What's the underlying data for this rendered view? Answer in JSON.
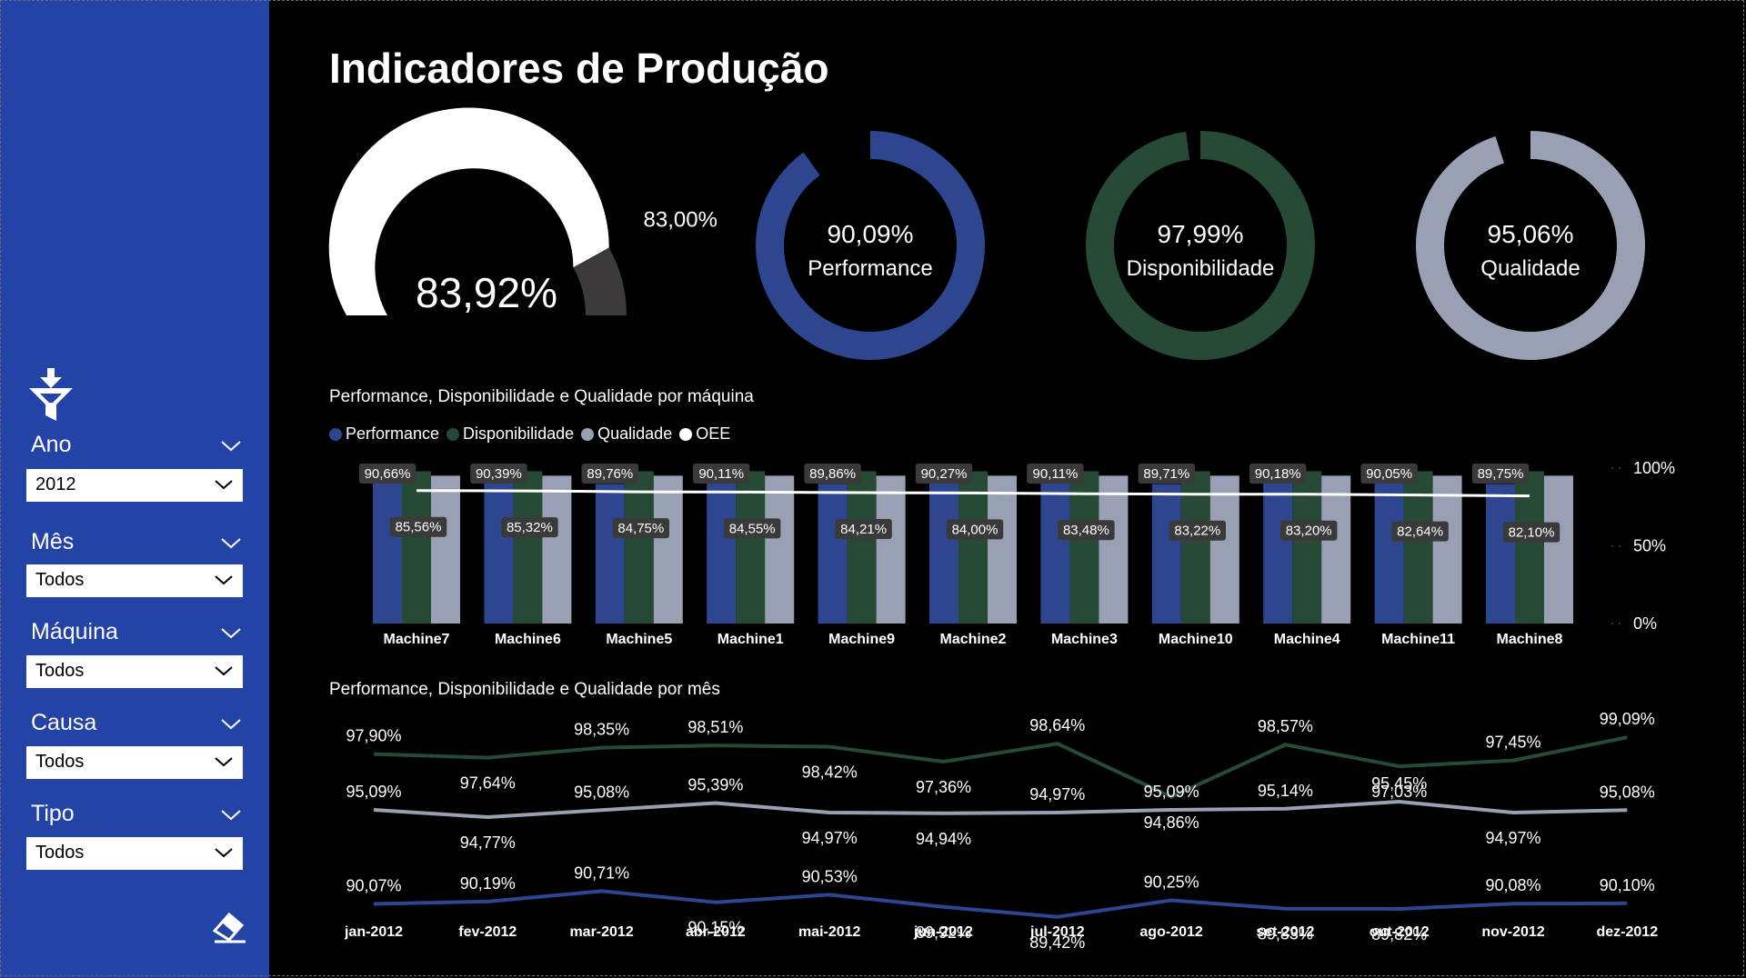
{
  "title": "Indicadores de Produção",
  "colors": {
    "sidebar": "#2443a6",
    "performance": "#2e4590",
    "disponibilidade": "#264a35",
    "qualidade": "#9aa0b4",
    "oee": "#ffffff",
    "gauge_rest": "#3c3a3a"
  },
  "sidebar": {
    "filter_icon": "funnel-icon",
    "clear_icon": "eraser-icon",
    "slicers": [
      {
        "label": "Ano",
        "value": "2012"
      },
      {
        "label": "Mês",
        "value": "Todos"
      },
      {
        "label": "Máquina",
        "value": "Todos"
      },
      {
        "label": "Causa",
        "value": "Todos"
      },
      {
        "label": "Tipo",
        "value": "Todos"
      }
    ]
  },
  "kpis": {
    "oee": {
      "label": "OEE",
      "value": "83,92%",
      "target": "83,00%",
      "fill": 0.8392,
      "target_fraction": 0.83
    },
    "donuts": [
      {
        "value": "90,09%",
        "label": "Performance",
        "fill": 0.9009,
        "color_key": "performance"
      },
      {
        "value": "97,99%",
        "label": "Disponibilidade",
        "fill": 0.9799,
        "color_key": "disponibilidade"
      },
      {
        "value": "95,06%",
        "label": "Qualidade",
        "fill": 0.9506,
        "color_key": "qualidade"
      }
    ]
  },
  "chart_data": [
    {
      "type": "bar",
      "title": "Performance, Disponibilidade e Qualidade por máquina",
      "legend": [
        "Performance",
        "Disponibilidade",
        "Qualidade",
        "OEE"
      ],
      "legend_placement": "top-left",
      "categories": [
        "Machine7",
        "Machine6",
        "Machine5",
        "Machine1",
        "Machine9",
        "Machine2",
        "Machine3",
        "Machine10",
        "Machine4",
        "Machine11",
        "Machine8"
      ],
      "series": [
        {
          "name": "Performance",
          "values": [
            90.66,
            90.39,
            89.76,
            90.11,
            89.86,
            90.27,
            90.11,
            89.71,
            90.18,
            90.05,
            89.75
          ],
          "labels": [
            "90,66%",
            "90,39%",
            "89,76%",
            "90,11%",
            "89,86%",
            "90,27%",
            "90,11%",
            "89,71%",
            "90,18%",
            "90,05%",
            "89,75%"
          ]
        },
        {
          "name": "Disponibilidade",
          "values": [
            98.0,
            98.0,
            98.0,
            98.0,
            98.0,
            98.0,
            98.0,
            98.0,
            98.0,
            98.0,
            98.0
          ]
        },
        {
          "name": "Qualidade",
          "values": [
            95.1,
            95.1,
            95.1,
            95.1,
            95.1,
            95.1,
            95.1,
            95.1,
            95.1,
            95.1,
            95.1
          ]
        },
        {
          "name": "OEE",
          "type": "line",
          "values": [
            85.56,
            85.32,
            84.75,
            84.55,
            84.21,
            84.0,
            83.48,
            83.22,
            83.2,
            82.64,
            82.1
          ],
          "labels": [
            "85,56%",
            "85,32%",
            "84,75%",
            "84,55%",
            "84,21%",
            "84,00%",
            "83,48%",
            "83,22%",
            "83,20%",
            "82,64%",
            "82,10%"
          ]
        }
      ],
      "y_ticks": [
        "0%",
        "50%",
        "100%"
      ],
      "ylim": [
        0,
        100
      ]
    },
    {
      "type": "line",
      "title": "Performance, Disponibilidade e Qualidade por mês",
      "categories": [
        "jan-2012",
        "fev-2012",
        "mar-2012",
        "abr-2012",
        "mai-2012",
        "jun-2012",
        "jul-2012",
        "ago-2012",
        "set-2012",
        "out-2012",
        "nov-2012",
        "dez-2012"
      ],
      "series": [
        {
          "name": "Disponibilidade",
          "values": [
            97.9,
            97.64,
            98.35,
            98.51,
            98.42,
            97.36,
            98.64,
            94.86,
            98.57,
            97.03,
            97.45,
            99.09
          ],
          "labels": [
            "97,90%",
            "97,64%",
            "98,35%",
            "98,51%",
            "98,42%",
            "97,36%",
            "98,64%",
            "94,86%",
            "98,57%",
            "97,03%",
            "97,45%",
            "99,09%"
          ]
        },
        {
          "name": "Qualidade",
          "values": [
            95.09,
            94.77,
            95.08,
            95.39,
            94.97,
            94.94,
            94.97,
            95.09,
            95.14,
            95.45,
            94.97,
            95.08
          ],
          "labels": [
            "95,09%",
            "94,77%",
            "95,08%",
            "95,39%",
            "94,97%",
            "94,94%",
            "94,97%",
            "95,09%",
            "95,14%",
            "95,45%",
            "94,97%",
            "95,08%"
          ]
        },
        {
          "name": "Performance",
          "values": [
            90.07,
            90.19,
            90.71,
            90.15,
            90.53,
            89.92,
            89.42,
            90.25,
            89.83,
            89.82,
            90.08,
            90.1
          ],
          "labels": [
            "90,07%",
            "90,19%",
            "90,71%",
            "90,15%",
            "90,53%",
            "89,92%",
            "89,42%",
            "90,25%",
            "89,83%",
            "89,82%",
            "90,08%",
            "90,10%"
          ]
        }
      ]
    }
  ]
}
